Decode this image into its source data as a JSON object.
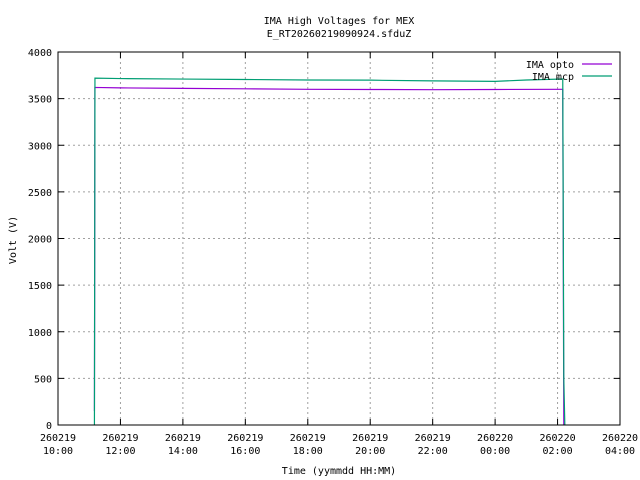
{
  "chart_data": {
    "type": "line",
    "title": "IMA High Voltages for MEX",
    "subtitle": "E_RT20260219090924.sfduZ",
    "xlabel": "Time (yymmdd HH:MM)",
    "ylabel": "Volt (V)",
    "xlim": [
      "2026-02-19 10:00",
      "2026-02-20 04:00"
    ],
    "ylim": [
      0,
      4000
    ],
    "yticks": [
      0,
      500,
      1000,
      1500,
      2000,
      2500,
      3000,
      3500,
      4000
    ],
    "xticks": [
      {
        "date": "260219",
        "time": "10:00"
      },
      {
        "date": "260219",
        "time": "12:00"
      },
      {
        "date": "260219",
        "time": "14:00"
      },
      {
        "date": "260219",
        "time": "16:00"
      },
      {
        "date": "260219",
        "time": "18:00"
      },
      {
        "date": "260219",
        "time": "20:00"
      },
      {
        "date": "260219",
        "time": "22:00"
      },
      {
        "date": "260220",
        "time": "00:00"
      },
      {
        "date": "260220",
        "time": "02:00"
      },
      {
        "date": "260220",
        "time": "04:00"
      }
    ],
    "grid": true,
    "legend_position": "top-right",
    "series": [
      {
        "name": "IMA opto",
        "color": "#9400d3",
        "points": [
          [
            "2026-02-19 11:10",
            150
          ],
          [
            "2026-02-19 11:11",
            3620
          ],
          [
            "2026-02-19 12:00",
            3615
          ],
          [
            "2026-02-19 14:00",
            3610
          ],
          [
            "2026-02-19 16:00",
            3605
          ],
          [
            "2026-02-19 18:00",
            3600
          ],
          [
            "2026-02-19 20:00",
            3598
          ],
          [
            "2026-02-19 22:00",
            3596
          ],
          [
            "2026-02-20 00:00",
            3598
          ],
          [
            "2026-02-20 02:00",
            3600
          ],
          [
            "2026-02-20 02:10",
            3600
          ],
          [
            "2026-02-20 02:12",
            0
          ]
        ]
      },
      {
        "name": "IMA mcp",
        "color": "#009e73",
        "points": [
          [
            "2026-02-19 11:10",
            0
          ],
          [
            "2026-02-19 11:11",
            3720
          ],
          [
            "2026-02-19 12:00",
            3715
          ],
          [
            "2026-02-19 14:00",
            3710
          ],
          [
            "2026-02-19 16:00",
            3705
          ],
          [
            "2026-02-19 18:00",
            3700
          ],
          [
            "2026-02-19 20:00",
            3698
          ],
          [
            "2026-02-19 22:00",
            3690
          ],
          [
            "2026-02-20 00:00",
            3685
          ],
          [
            "2026-02-20 01:00",
            3700
          ],
          [
            "2026-02-20 02:10",
            3710
          ],
          [
            "2026-02-20 02:12",
            500
          ],
          [
            "2026-02-20 02:14",
            0
          ]
        ]
      }
    ]
  }
}
